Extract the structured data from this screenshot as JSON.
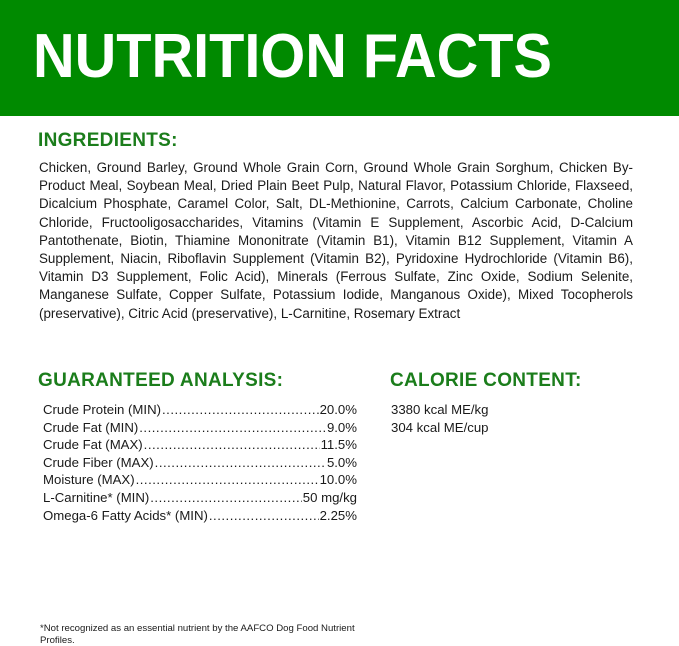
{
  "header": {
    "title": "NUTRITION FACTS",
    "color": "#008a00"
  },
  "ingredients": {
    "heading": "INGREDIENTS:",
    "text": "Chicken, Ground Barley, Ground Whole Grain Corn, Ground Whole Grain Sorghum, Chicken By-Product Meal, Soybean Meal, Dried Plain Beet Pulp, Natural Flavor, Potassium Chloride, Flaxseed, Dicalcium Phosphate, Caramel Color, Salt, DL-Methionine, Carrots, Calcium Carbonate, Choline Chloride, Fructooligosaccharides, Vitamins (Vitamin E Supplement, Ascorbic Acid, D-Calcium Pantothenate, Biotin, Thiamine Mononitrate (Vitamin B1), Vitamin B12 Supplement, Vitamin A Supplement, Niacin, Riboflavin Supplement (Vitamin B2), Pyridoxine Hydrochloride (Vitamin B6), Vitamin D3 Supplement, Folic Acid), Minerals (Ferrous Sulfate, Zinc Oxide, Sodium Selenite, Manganese Sulfate, Copper Sulfate, Potassium Iodide, Manganous Oxide), Mixed Tocopherols (preservative), Citric Acid (preservative), L-Carnitine, Rosemary Extract"
  },
  "guaranteed_analysis": {
    "heading": "GUARANTEED ANALYSIS:",
    "rows": [
      {
        "label": "Crude Protein (MIN)",
        "value": "20.0%"
      },
      {
        "label": "Crude Fat (MIN)",
        "value": "9.0%"
      },
      {
        "label": "Crude Fat (MAX)",
        "value": "11.5%"
      },
      {
        "label": "Crude Fiber (MAX)",
        "value": "5.0%"
      },
      {
        "label": "Moisture (MAX)",
        "value": "10.0%"
      },
      {
        "label": "L-Carnitine* (MIN)",
        "value": "50 mg/kg"
      },
      {
        "label": "Omega-6 Fatty Acids* (MIN)",
        "value": "2.25%"
      }
    ]
  },
  "calorie_content": {
    "heading": "CALORIE CONTENT:",
    "lines": [
      "3380 kcal ME/kg",
      "304 kcal ME/cup"
    ]
  },
  "footnote": "*Not recognized as an essential nutrient by the AAFCO Dog Food Nutrient Profiles."
}
